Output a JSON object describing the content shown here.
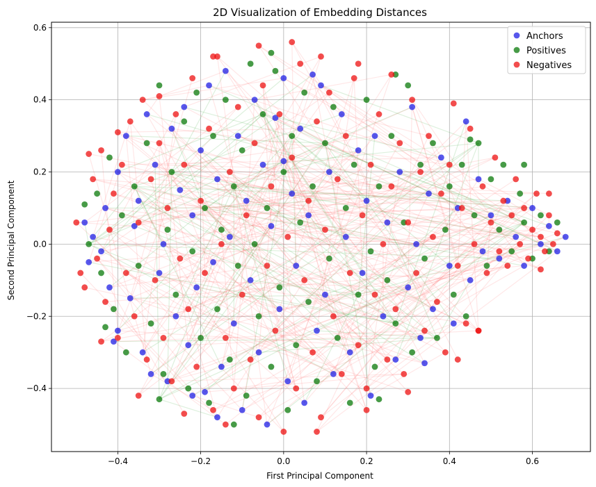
{
  "chart_data": {
    "type": "scatter",
    "title": "2D Visualization of Embedding Distances",
    "xlabel": "First Principal Component",
    "ylabel": "Second Principal Component",
    "xlim": [
      -0.56,
      0.74
    ],
    "ylim": [
      -0.575,
      0.615
    ],
    "xticks": [
      -0.4,
      -0.2,
      0.0,
      0.2,
      0.4,
      0.6
    ],
    "xtick_labels": [
      "−0.4",
      "−0.2",
      "0.0",
      "0.2",
      "0.4",
      "0.6"
    ],
    "yticks": [
      -0.4,
      -0.2,
      0.0,
      0.2,
      0.4,
      0.6
    ],
    "ytick_labels": [
      "−0.4",
      "−0.2",
      "0.0",
      "0.2",
      "0.4",
      "0.6"
    ],
    "grid": true,
    "legend_position": "top-right",
    "colors": {
      "anchors": "#1f1fe6",
      "positives": "#0a7a0a",
      "negatives": "#ee1111",
      "positive_link": "#44aa44",
      "negative_link": "#ff5555"
    },
    "series": [
      {
        "name": "Anchors",
        "color": "#1f1fe6"
      },
      {
        "name": "Positives",
        "color": "#0a7a0a"
      },
      {
        "name": "Negatives",
        "color": "#ee1111"
      }
    ],
    "points": {
      "anchors": [
        [
          -0.48,
          0.06
        ],
        [
          -0.46,
          0.02
        ],
        [
          -0.44,
          -0.02
        ],
        [
          -0.43,
          0.1
        ],
        [
          -0.42,
          -0.12
        ],
        [
          -0.4,
          0.2
        ],
        [
          -0.4,
          -0.24
        ],
        [
          -0.38,
          0.3
        ],
        [
          -0.37,
          -0.15
        ],
        [
          -0.36,
          0.05
        ],
        [
          -0.35,
          0.12
        ],
        [
          -0.34,
          -0.3
        ],
        [
          -0.33,
          0.36
        ],
        [
          -0.31,
          0.22
        ],
        [
          -0.3,
          -0.08
        ],
        [
          -0.29,
          0.0
        ],
        [
          -0.28,
          -0.38
        ],
        [
          -0.27,
          0.32
        ],
        [
          -0.26,
          -0.2
        ],
        [
          -0.25,
          0.15
        ],
        [
          -0.24,
          0.38
        ],
        [
          -0.23,
          -0.28
        ],
        [
          -0.22,
          0.08
        ],
        [
          -0.21,
          -0.12
        ],
        [
          -0.2,
          0.26
        ],
        [
          -0.19,
          -0.41
        ],
        [
          -0.18,
          0.44
        ],
        [
          -0.17,
          -0.05
        ],
        [
          -0.16,
          0.18
        ],
        [
          -0.15,
          -0.34
        ],
        [
          -0.14,
          0.48
        ],
        [
          -0.13,
          0.02
        ],
        [
          -0.12,
          -0.22
        ],
        [
          -0.11,
          0.3
        ],
        [
          -0.1,
          -0.46
        ],
        [
          -0.09,
          0.12
        ],
        [
          -0.08,
          -0.1
        ],
        [
          -0.07,
          0.4
        ],
        [
          -0.06,
          -0.3
        ],
        [
          -0.05,
          0.22
        ],
        [
          -0.04,
          -0.5
        ],
        [
          -0.03,
          0.05
        ],
        [
          -0.02,
          0.35
        ],
        [
          -0.01,
          -0.18
        ],
        [
          0.0,
          0.46
        ],
        [
          0.0,
          0.23
        ],
        [
          0.01,
          -0.38
        ],
        [
          0.02,
          0.14
        ],
        [
          0.03,
          -0.06
        ],
        [
          0.04,
          0.32
        ],
        [
          0.05,
          -0.44
        ],
        [
          0.06,
          0.08
        ],
        [
          0.08,
          -0.24
        ],
        [
          0.09,
          0.44
        ],
        [
          0.1,
          -0.14
        ],
        [
          0.11,
          0.2
        ],
        [
          0.12,
          -0.36
        ],
        [
          0.14,
          0.36
        ],
        [
          0.15,
          0.02
        ],
        [
          0.16,
          -0.3
        ],
        [
          0.18,
          0.26
        ],
        [
          0.19,
          -0.08
        ],
        [
          0.2,
          0.12
        ],
        [
          0.21,
          -0.42
        ],
        [
          0.22,
          0.3
        ],
        [
          0.24,
          -0.2
        ],
        [
          0.25,
          0.06
        ],
        [
          0.27,
          -0.32
        ],
        [
          0.28,
          0.2
        ],
        [
          0.3,
          -0.12
        ],
        [
          0.31,
          0.38
        ],
        [
          0.32,
          0.0
        ],
        [
          0.33,
          -0.26
        ],
        [
          0.35,
          0.14
        ],
        [
          0.36,
          -0.18
        ],
        [
          0.38,
          0.24
        ],
        [
          0.4,
          -0.06
        ],
        [
          0.41,
          -0.22
        ],
        [
          0.42,
          0.1
        ],
        [
          0.44,
          0.34
        ],
        [
          0.45,
          -0.1
        ],
        [
          0.47,
          0.18
        ],
        [
          0.48,
          -0.02
        ],
        [
          0.5,
          0.08
        ],
        [
          0.52,
          -0.04
        ],
        [
          0.54,
          0.12
        ],
        [
          0.56,
          0.02
        ],
        [
          0.58,
          -0.06
        ],
        [
          0.6,
          0.1
        ],
        [
          0.62,
          0.0
        ],
        [
          0.64,
          0.05
        ],
        [
          0.66,
          -0.02
        ],
        [
          0.68,
          0.02
        ],
        [
          -0.47,
          -0.05
        ],
        [
          -0.41,
          -0.27
        ],
        [
          -0.32,
          -0.36
        ],
        [
          -0.22,
          -0.42
        ],
        [
          -0.16,
          -0.48
        ],
        [
          0.07,
          0.47
        ],
        [
          0.34,
          -0.33
        ]
      ],
      "positives": [
        [
          -0.47,
          0.0
        ],
        [
          -0.45,
          0.14
        ],
        [
          -0.44,
          -0.08
        ],
        [
          -0.42,
          0.24
        ],
        [
          -0.41,
          -0.18
        ],
        [
          -0.39,
          0.08
        ],
        [
          -0.38,
          -0.3
        ],
        [
          -0.36,
          0.16
        ],
        [
          -0.35,
          -0.06
        ],
        [
          -0.33,
          0.28
        ],
        [
          -0.32,
          -0.22
        ],
        [
          -0.3,
          0.44
        ],
        [
          -0.29,
          -0.36
        ],
        [
          -0.28,
          0.04
        ],
        [
          -0.27,
          0.2
        ],
        [
          -0.26,
          -0.14
        ],
        [
          -0.24,
          0.34
        ],
        [
          -0.23,
          -0.4
        ],
        [
          -0.22,
          -0.02
        ],
        [
          -0.21,
          0.42
        ],
        [
          -0.2,
          -0.26
        ],
        [
          -0.19,
          0.1
        ],
        [
          -0.18,
          -0.44
        ],
        [
          -0.17,
          0.3
        ],
        [
          -0.16,
          -0.18
        ],
        [
          -0.15,
          0.04
        ],
        [
          -0.14,
          0.4
        ],
        [
          -0.13,
          -0.32
        ],
        [
          -0.12,
          0.16
        ],
        [
          -0.11,
          -0.06
        ],
        [
          -0.1,
          0.26
        ],
        [
          -0.09,
          -0.42
        ],
        [
          -0.08,
          0.5
        ],
        [
          -0.07,
          0.0
        ],
        [
          -0.06,
          -0.2
        ],
        [
          -0.05,
          0.36
        ],
        [
          -0.04,
          0.1
        ],
        [
          -0.03,
          -0.34
        ],
        [
          -0.02,
          0.48
        ],
        [
          -0.01,
          -0.12
        ],
        [
          0.0,
          0.2
        ],
        [
          0.01,
          -0.46
        ],
        [
          0.02,
          0.3
        ],
        [
          0.03,
          -0.28
        ],
        [
          0.04,
          0.06
        ],
        [
          0.05,
          0.42
        ],
        [
          0.06,
          -0.16
        ],
        [
          0.07,
          0.16
        ],
        [
          0.08,
          -0.38
        ],
        [
          0.1,
          0.28
        ],
        [
          0.11,
          -0.04
        ],
        [
          0.12,
          0.38
        ],
        [
          0.13,
          -0.26
        ],
        [
          0.15,
          0.1
        ],
        [
          0.16,
          -0.44
        ],
        [
          0.17,
          0.22
        ],
        [
          0.18,
          -0.14
        ],
        [
          0.2,
          0.4
        ],
        [
          0.21,
          -0.02
        ],
        [
          0.22,
          -0.34
        ],
        [
          0.23,
          0.16
        ],
        [
          0.25,
          -0.1
        ],
        [
          0.26,
          0.3
        ],
        [
          0.27,
          -0.22
        ],
        [
          0.29,
          0.06
        ],
        [
          0.3,
          0.44
        ],
        [
          0.31,
          -0.3
        ],
        [
          0.33,
          0.22
        ],
        [
          0.34,
          -0.04
        ],
        [
          0.36,
          0.28
        ],
        [
          0.37,
          -0.26
        ],
        [
          0.39,
          0.04
        ],
        [
          0.4,
          0.16
        ],
        [
          0.41,
          -0.14
        ],
        [
          0.43,
          0.22
        ],
        [
          0.44,
          -0.2
        ],
        [
          0.46,
          0.08
        ],
        [
          0.47,
          0.28
        ],
        [
          0.49,
          -0.06
        ],
        [
          0.5,
          0.18
        ],
        [
          0.52,
          0.04
        ],
        [
          0.53,
          0.22
        ],
        [
          0.55,
          -0.02
        ],
        [
          0.57,
          0.14
        ],
        [
          0.58,
          0.06
        ],
        [
          0.6,
          -0.04
        ],
        [
          0.62,
          0.08
        ],
        [
          0.64,
          -0.02
        ],
        [
          0.66,
          0.06
        ],
        [
          -0.48,
          0.11
        ],
        [
          -0.43,
          -0.23
        ],
        [
          -0.3,
          -0.43
        ],
        [
          -0.12,
          -0.5
        ],
        [
          0.23,
          -0.43
        ],
        [
          -0.03,
          0.53
        ],
        [
          0.27,
          0.47
        ],
        [
          0.45,
          0.29
        ],
        [
          0.58,
          0.22
        ]
      ],
      "negatives": [
        [
          -0.5,
          0.06
        ],
        [
          -0.48,
          -0.12
        ],
        [
          -0.46,
          0.18
        ],
        [
          -0.45,
          -0.04
        ],
        [
          -0.44,
          0.26
        ],
        [
          -0.43,
          -0.16
        ],
        [
          -0.42,
          0.04
        ],
        [
          -0.41,
          0.14
        ],
        [
          -0.4,
          -0.26
        ],
        [
          -0.39,
          0.22
        ],
        [
          -0.38,
          -0.08
        ],
        [
          -0.37,
          0.34
        ],
        [
          -0.36,
          -0.2
        ],
        [
          -0.35,
          0.06
        ],
        [
          -0.34,
          0.4
        ],
        [
          -0.33,
          -0.32
        ],
        [
          -0.32,
          0.18
        ],
        [
          -0.31,
          -0.1
        ],
        [
          -0.3,
          0.28
        ],
        [
          -0.29,
          -0.26
        ],
        [
          -0.28,
          0.1
        ],
        [
          -0.27,
          -0.38
        ],
        [
          -0.26,
          0.36
        ],
        [
          -0.25,
          -0.04
        ],
        [
          -0.24,
          0.22
        ],
        [
          -0.23,
          -0.18
        ],
        [
          -0.22,
          0.46
        ],
        [
          -0.21,
          -0.34
        ],
        [
          -0.2,
          0.12
        ],
        [
          -0.19,
          -0.08
        ],
        [
          -0.18,
          0.32
        ],
        [
          -0.17,
          -0.46
        ],
        [
          -0.16,
          0.52
        ],
        [
          -0.15,
          0.0
        ],
        [
          -0.14,
          -0.26
        ],
        [
          -0.13,
          0.2
        ],
        [
          -0.12,
          -0.4
        ],
        [
          -0.11,
          0.38
        ],
        [
          -0.1,
          -0.14
        ],
        [
          -0.09,
          0.08
        ],
        [
          -0.08,
          -0.32
        ],
        [
          -0.07,
          0.28
        ],
        [
          -0.06,
          -0.48
        ],
        [
          -0.05,
          0.44
        ],
        [
          -0.04,
          -0.06
        ],
        [
          -0.03,
          0.16
        ],
        [
          -0.02,
          -0.24
        ],
        [
          -0.01,
          0.36
        ],
        [
          0.0,
          -0.52
        ],
        [
          0.01,
          0.02
        ],
        [
          0.02,
          0.24
        ],
        [
          0.03,
          -0.4
        ],
        [
          0.04,
          0.5
        ],
        [
          0.05,
          -0.1
        ],
        [
          0.06,
          0.12
        ],
        [
          0.07,
          -0.3
        ],
        [
          0.08,
          0.34
        ],
        [
          0.09,
          -0.48
        ],
        [
          0.1,
          0.04
        ],
        [
          0.11,
          0.42
        ],
        [
          0.12,
          -0.2
        ],
        [
          0.13,
          0.18
        ],
        [
          0.14,
          -0.36
        ],
        [
          0.15,
          0.3
        ],
        [
          0.16,
          -0.08
        ],
        [
          0.17,
          0.46
        ],
        [
          0.18,
          -0.28
        ],
        [
          0.19,
          0.08
        ],
        [
          0.2,
          -0.4
        ],
        [
          0.21,
          0.22
        ],
        [
          0.22,
          -0.14
        ],
        [
          0.23,
          0.36
        ],
        [
          0.24,
          0.0
        ],
        [
          0.25,
          -0.32
        ],
        [
          0.26,
          0.16
        ],
        [
          0.27,
          -0.18
        ],
        [
          0.28,
          0.28
        ],
        [
          0.29,
          -0.36
        ],
        [
          0.3,
          0.06
        ],
        [
          0.31,
          0.4
        ],
        [
          0.32,
          -0.08
        ],
        [
          0.33,
          0.2
        ],
        [
          0.34,
          -0.24
        ],
        [
          0.35,
          0.3
        ],
        [
          0.36,
          0.02
        ],
        [
          0.37,
          -0.16
        ],
        [
          0.38,
          0.14
        ],
        [
          0.39,
          -0.3
        ],
        [
          0.4,
          0.22
        ],
        [
          0.41,
          0.39
        ],
        [
          0.42,
          -0.06
        ],
        [
          0.43,
          0.1
        ],
        [
          0.44,
          -0.22
        ],
        [
          0.45,
          0.32
        ],
        [
          0.46,
          0.0
        ],
        [
          0.47,
          -0.24
        ],
        [
          0.48,
          0.16
        ],
        [
          0.49,
          -0.08
        ],
        [
          0.5,
          0.06
        ],
        [
          0.51,
          0.24
        ],
        [
          0.52,
          -0.02
        ],
        [
          0.53,
          0.12
        ],
        [
          0.54,
          -0.06
        ],
        [
          0.55,
          0.08
        ],
        [
          0.56,
          0.18
        ],
        [
          0.57,
          0.0
        ],
        [
          0.58,
          0.1
        ],
        [
          0.59,
          -0.04
        ],
        [
          0.6,
          0.04
        ],
        [
          0.61,
          0.14
        ],
        [
          0.62,
          0.02
        ],
        [
          0.63,
          -0.02
        ],
        [
          0.64,
          0.08
        ],
        [
          0.65,
          0.0
        ],
        [
          0.66,
          0.03
        ],
        [
          -0.49,
          -0.08
        ],
        [
          -0.44,
          -0.27
        ],
        [
          -0.35,
          -0.42
        ],
        [
          -0.24,
          -0.47
        ],
        [
          -0.14,
          -0.5
        ],
        [
          0.02,
          0.56
        ],
        [
          0.09,
          0.52
        ],
        [
          0.18,
          0.5
        ],
        [
          0.08,
          -0.52
        ],
        [
          0.2,
          -0.46
        ],
        [
          0.3,
          -0.41
        ],
        [
          0.42,
          -0.32
        ],
        [
          0.47,
          -0.24
        ],
        [
          0.62,
          -0.07
        ],
        [
          0.64,
          0.14
        ],
        [
          -0.47,
          0.25
        ],
        [
          -0.4,
          0.31
        ],
        [
          -0.3,
          0.41
        ],
        [
          -0.17,
          0.52
        ],
        [
          -0.06,
          0.55
        ],
        [
          0.26,
          0.47
        ]
      ]
    }
  }
}
